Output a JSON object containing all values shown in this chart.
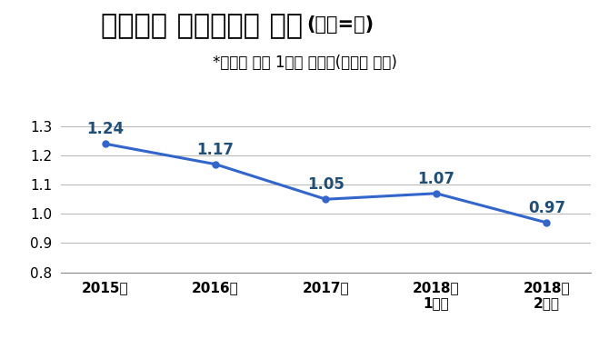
{
  "title_main": "우리나라 합계출산율 추이",
  "title_unit": "(단위=명)",
  "subtitle": "*가임기 여성 1명당 출산율(통계청 제공)",
  "x_labels": [
    "2015년",
    "2016년",
    "2017년",
    "2018년\n1분기",
    "2018년\n2분기"
  ],
  "y_values": [
    1.24,
    1.17,
    1.05,
    1.07,
    0.97
  ],
  "data_labels": [
    "1.24",
    "1.17",
    "1.05",
    "1.07",
    "0.97"
  ],
  "ylim": [
    0.8,
    1.35
  ],
  "yticks": [
    0.8,
    0.9,
    1.0,
    1.1,
    1.2,
    1.3
  ],
  "line_color": "#3366CC",
  "marker_color": "#3366CC",
  "label_color": "#1F4E79",
  "background_color": "#FFFFFF",
  "title_main_fontsize": 22,
  "title_unit_fontsize": 15,
  "subtitle_fontsize": 12,
  "data_label_fontsize": 12,
  "tick_fontsize": 11
}
